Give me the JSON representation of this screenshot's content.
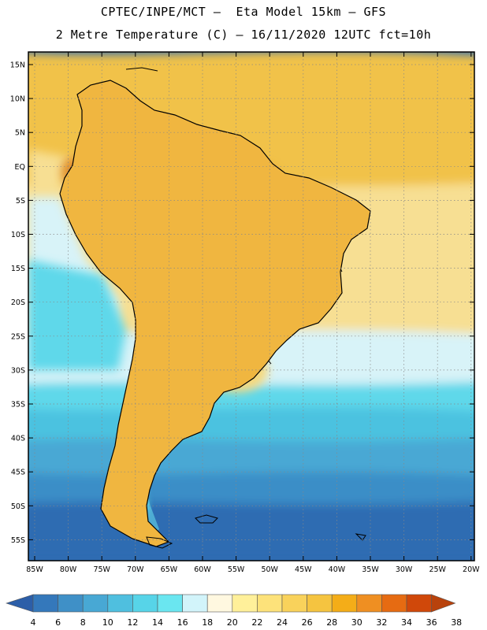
{
  "header": {
    "line1": "CPTEC/INPE/MCT –  Eta Model 15km – GFS",
    "line2": "2 Metre Temperature (C) – 16/11/2020 12UTC fct=10h"
  },
  "axes": {
    "lat_labels": [
      "15N",
      "10N",
      "5N",
      "EQ",
      "5S",
      "10S",
      "15S",
      "20S",
      "25S",
      "30S",
      "35S",
      "40S",
      "45S",
      "50S",
      "55S"
    ],
    "lon_labels": [
      "85W",
      "80W",
      "75W",
      "70W",
      "65W",
      "60W",
      "55W",
      "50W",
      "45W",
      "40W",
      "35W",
      "30W",
      "25W",
      "20W"
    ]
  },
  "colorbar": {
    "levels": [
      "4",
      "6",
      "8",
      "10",
      "12",
      "14",
      "16",
      "18",
      "20",
      "22",
      "24",
      "26",
      "28",
      "30",
      "32",
      "34",
      "36",
      "38"
    ],
    "colors": [
      "#2c5ea8",
      "#3478bb",
      "#3f90c7",
      "#48a8d4",
      "#4fbfdf",
      "#57d4e8",
      "#6ae6f0",
      "#d2f4fa",
      "#fff8e0",
      "#fff09a",
      "#fde27a",
      "#f9d25b",
      "#f5c440",
      "#f4ad18",
      "#ef8f22",
      "#e66b12",
      "#d0480a",
      "#b8420c"
    ]
  },
  "map": {
    "region": "South America",
    "ocean_bands": [
      {
        "level": 30,
        "color": "#f1c24a"
      },
      {
        "level": 22,
        "color": "#f7df93"
      },
      {
        "level": 18,
        "color": "#d8f3f8"
      },
      {
        "level": 14,
        "color": "#5fd8ea"
      },
      {
        "level": 12,
        "color": "#4bc2e0"
      },
      {
        "level": 10,
        "color": "#48a8d4"
      },
      {
        "level": 8,
        "color": "#3a8ec7"
      },
      {
        "level": 6,
        "color": "#2f6cb2"
      }
    ],
    "land_colors": {
      "warm": "#f0b640",
      "hot": "#e08f2e",
      "hottest": "#c5561a",
      "cool": "#f6d87a",
      "highland": "#3fa0c9",
      "snow": "#6ae0ef"
    }
  }
}
